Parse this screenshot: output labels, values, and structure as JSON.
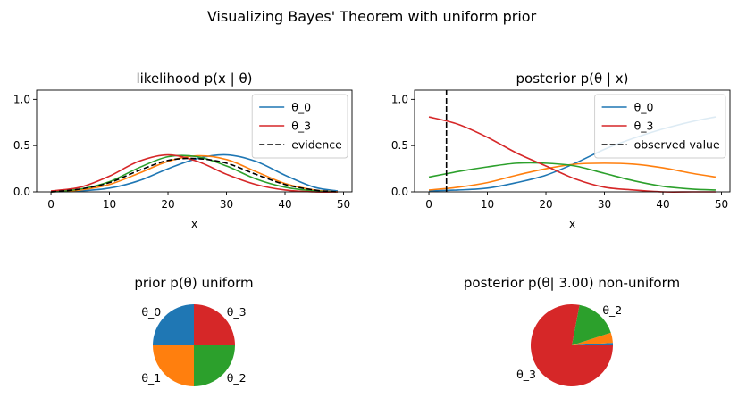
{
  "suptitle": "Visualizing Bayes' Theorem with uniform prior",
  "colors": {
    "theta_0": "#1f77b4",
    "theta_1": "#ff7f0e",
    "theta_2": "#2ca02c",
    "theta_3": "#d62728",
    "reference": "#000000"
  },
  "chart_data": [
    {
      "type": "line",
      "title": "likelihood p(x | θ)",
      "xlabel": "x",
      "ylabel": "",
      "xlim": [
        -2.45,
        51.45
      ],
      "ylim": [
        0,
        1.1
      ],
      "xticks": [
        0,
        10,
        20,
        30,
        40,
        50
      ],
      "yticks": [
        0.0,
        0.5,
        1.0
      ],
      "ytick_labels": [
        "0.0",
        "0.5",
        "1.0"
      ],
      "legend_position": "top-right",
      "legend": [
        "θ_0",
        "θ_3",
        "evidence"
      ],
      "x": [
        0,
        5,
        10,
        15,
        20,
        25,
        30,
        35,
        40,
        45,
        49
      ],
      "series": [
        {
          "name": "θ_0",
          "color": "#1f77b4",
          "style": "solid",
          "values": [
            0.0,
            0.01,
            0.04,
            0.12,
            0.25,
            0.36,
            0.4,
            0.33,
            0.18,
            0.05,
            0.01
          ]
        },
        {
          "color": "#ff7f0e",
          "style": "solid",
          "values": [
            0.0,
            0.02,
            0.08,
            0.2,
            0.33,
            0.39,
            0.35,
            0.22,
            0.09,
            0.02,
            0.0
          ]
        },
        {
          "color": "#2ca02c",
          "style": "solid",
          "values": [
            0.0,
            0.03,
            0.11,
            0.26,
            0.38,
            0.38,
            0.28,
            0.14,
            0.05,
            0.01,
            0.0
          ]
        },
        {
          "name": "θ_3",
          "color": "#d62728",
          "style": "solid",
          "values": [
            0.01,
            0.05,
            0.17,
            0.33,
            0.4,
            0.33,
            0.19,
            0.08,
            0.02,
            0.0,
            0.0
          ]
        },
        {
          "name": "evidence",
          "color": "#000000",
          "style": "dashed",
          "values": [
            0.0,
            0.03,
            0.1,
            0.23,
            0.34,
            0.36,
            0.31,
            0.19,
            0.08,
            0.02,
            0.0
          ]
        }
      ]
    },
    {
      "type": "line",
      "title": "posterior p(θ  | x)",
      "xlabel": "x",
      "ylabel": "",
      "xlim": [
        -2.45,
        51.45
      ],
      "ylim": [
        0,
        1.1
      ],
      "xticks": [
        0,
        10,
        20,
        30,
        40,
        50
      ],
      "yticks": [
        0.0,
        0.5,
        1.0
      ],
      "ytick_labels": [
        "0.0",
        "0.5",
        "1.0"
      ],
      "legend_position": "top-right",
      "legend": [
        "θ_0",
        "θ_3",
        "observed value"
      ],
      "vline": {
        "name": "observed value",
        "x": 3,
        "color": "#000000",
        "style": "dashed"
      },
      "x": [
        0,
        5,
        10,
        15,
        20,
        25,
        30,
        35,
        40,
        45,
        49
      ],
      "series": [
        {
          "name": "θ_0",
          "color": "#1f77b4",
          "style": "solid",
          "values": [
            0.01,
            0.02,
            0.04,
            0.1,
            0.18,
            0.31,
            0.46,
            0.58,
            0.68,
            0.76,
            0.81
          ]
        },
        {
          "color": "#ff7f0e",
          "style": "solid",
          "values": [
            0.02,
            0.05,
            0.1,
            0.18,
            0.25,
            0.3,
            0.31,
            0.3,
            0.26,
            0.2,
            0.16
          ]
        },
        {
          "color": "#2ca02c",
          "style": "solid",
          "values": [
            0.16,
            0.22,
            0.27,
            0.31,
            0.31,
            0.28,
            0.2,
            0.12,
            0.06,
            0.03,
            0.02
          ]
        },
        {
          "name": "θ_3",
          "color": "#d62728",
          "style": "solid",
          "values": [
            0.81,
            0.73,
            0.59,
            0.42,
            0.28,
            0.14,
            0.05,
            0.02,
            0.0,
            0.0,
            0.0
          ]
        }
      ]
    },
    {
      "type": "pie",
      "title": "prior p(θ) uniform",
      "labels": [
        "θ_0",
        "θ_1",
        "θ_2",
        "θ_3"
      ],
      "values": [
        0.25,
        0.25,
        0.25,
        0.25
      ],
      "colors": [
        "#1f77b4",
        "#ff7f0e",
        "#2ca02c",
        "#d62728"
      ],
      "start_angle_deg": 90,
      "direction": "counterclockwise"
    },
    {
      "type": "pie",
      "title": "posterior p(θ| 3.00) non-uniform",
      "labels": [
        "",
        "",
        "θ_2",
        "θ_3"
      ],
      "values": [
        0.01,
        0.04,
        0.17,
        0.78
      ],
      "colors": [
        "#1f77b4",
        "#ff7f0e",
        "#2ca02c",
        "#d62728"
      ],
      "start_angle_deg": 0,
      "direction": "counterclockwise"
    }
  ]
}
